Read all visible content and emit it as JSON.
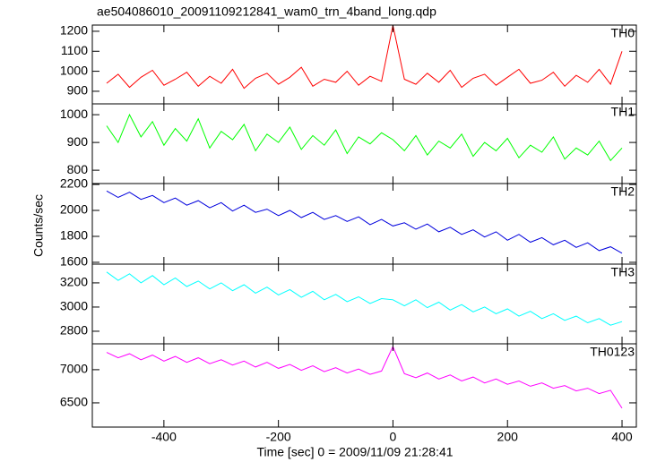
{
  "chart_data": [
    {
      "type": "line",
      "title": "ae504086010_20091109212841_wam0_trn_4band_long.qdp",
      "x": [
        -500,
        -480,
        -460,
        -440,
        -420,
        -400,
        -380,
        -360,
        -340,
        -320,
        -300,
        -280,
        -260,
        -240,
        -220,
        -200,
        -180,
        -160,
        -140,
        -120,
        -100,
        -80,
        -60,
        -40,
        -20,
        0,
        20,
        40,
        60,
        80,
        100,
        120,
        140,
        160,
        180,
        200,
        220,
        240,
        260,
        280,
        300,
        320,
        340,
        360,
        380,
        400
      ],
      "series": [
        {
          "name": "TH0",
          "color": "#ff0000",
          "values": [
            940,
            985,
            920,
            970,
            1005,
            930,
            960,
            995,
            925,
            975,
            940,
            1010,
            915,
            965,
            990,
            935,
            970,
            1020,
            925,
            960,
            945,
            1000,
            930,
            975,
            950,
            1230,
            960,
            935,
            990,
            945,
            1005,
            920,
            965,
            985,
            930,
            970,
            1010,
            940,
            955,
            995,
            925,
            980,
            945,
            1010,
            935,
            1100
          ]
        }
      ],
      "xlim": [
        -525,
        425
      ],
      "ylim": [
        837,
        1231
      ],
      "yticks": [
        900,
        1000,
        1100,
        1200
      ]
    },
    {
      "type": "line",
      "x": [
        -500,
        -480,
        -460,
        -440,
        -420,
        -400,
        -380,
        -360,
        -340,
        -320,
        -300,
        -280,
        -260,
        -240,
        -220,
        -200,
        -180,
        -160,
        -140,
        -120,
        -100,
        -80,
        -60,
        -40,
        -20,
        0,
        20,
        40,
        60,
        80,
        100,
        120,
        140,
        160,
        180,
        200,
        220,
        240,
        260,
        280,
        300,
        320,
        340,
        360,
        380,
        400
      ],
      "series": [
        {
          "name": "TH1",
          "color": "#00ff00",
          "values": [
            960,
            900,
            1000,
            920,
            975,
            890,
            950,
            905,
            985,
            880,
            940,
            910,
            965,
            870,
            930,
            900,
            955,
            875,
            925,
            890,
            945,
            860,
            920,
            895,
            935,
            910,
            870,
            925,
            855,
            905,
            880,
            930,
            850,
            900,
            870,
            915,
            845,
            890,
            865,
            920,
            840,
            880,
            855,
            905,
            835,
            880
          ]
        }
      ],
      "xlim": [
        -525,
        425
      ],
      "ylim": [
        752,
        1039
      ],
      "yticks": [
        800,
        900,
        1000
      ]
    },
    {
      "type": "line",
      "ylabel": "Counts/sec",
      "x": [
        -500,
        -480,
        -460,
        -440,
        -420,
        -400,
        -380,
        -360,
        -340,
        -320,
        -300,
        -280,
        -260,
        -240,
        -220,
        -200,
        -180,
        -160,
        -140,
        -120,
        -100,
        -80,
        -60,
        -40,
        -20,
        0,
        20,
        40,
        60,
        80,
        100,
        120,
        140,
        160,
        180,
        200,
        220,
        240,
        260,
        280,
        300,
        320,
        340,
        360,
        380,
        400
      ],
      "series": [
        {
          "name": "TH2",
          "color": "#0000dd",
          "values": [
            2150,
            2100,
            2140,
            2085,
            2115,
            2060,
            2095,
            2040,
            2075,
            2020,
            2060,
            1995,
            2040,
            1985,
            2010,
            1960,
            2000,
            1945,
            1985,
            1930,
            1960,
            1915,
            1950,
            1890,
            1930,
            1880,
            1905,
            1855,
            1895,
            1835,
            1870,
            1815,
            1850,
            1795,
            1835,
            1770,
            1815,
            1755,
            1790,
            1735,
            1770,
            1715,
            1750,
            1690,
            1720,
            1670
          ]
        }
      ],
      "xlim": [
        -525,
        425
      ],
      "ylim": [
        1586,
        2207
      ],
      "yticks": [
        1600,
        1800,
        2000,
        2200
      ]
    },
    {
      "type": "line",
      "x": [
        -500,
        -480,
        -460,
        -440,
        -420,
        -400,
        -380,
        -360,
        -340,
        -320,
        -300,
        -280,
        -260,
        -240,
        -220,
        -200,
        -180,
        -160,
        -140,
        -120,
        -100,
        -80,
        -60,
        -40,
        -20,
        0,
        20,
        40,
        60,
        80,
        100,
        120,
        140,
        160,
        180,
        200,
        220,
        240,
        260,
        280,
        300,
        320,
        340,
        360,
        380,
        400
      ],
      "series": [
        {
          "name": "TH3",
          "color": "#00ffff",
          "values": [
            3290,
            3220,
            3275,
            3200,
            3260,
            3185,
            3240,
            3170,
            3215,
            3150,
            3200,
            3135,
            3185,
            3115,
            3165,
            3100,
            3145,
            3080,
            3130,
            3060,
            3105,
            3045,
            3085,
            3030,
            3070,
            3060,
            3010,
            3060,
            2995,
            3040,
            2975,
            3020,
            2960,
            3000,
            2945,
            2985,
            2925,
            2965,
            2905,
            2945,
            2890,
            2925,
            2870,
            2905,
            2850,
            2880
          ]
        }
      ],
      "xlim": [
        -525,
        425
      ],
      "ylim": [
        2696,
        3355
      ],
      "yticks": [
        2800,
        3000,
        3200
      ]
    },
    {
      "type": "line",
      "xlabel": "Time [sec] 0 = 2009/11/09 21:28:41",
      "x": [
        -500,
        -480,
        -460,
        -440,
        -420,
        -400,
        -380,
        -360,
        -340,
        -320,
        -300,
        -280,
        -260,
        -240,
        -220,
        -200,
        -180,
        -160,
        -140,
        -120,
        -100,
        -80,
        -60,
        -40,
        -20,
        0,
        20,
        40,
        60,
        80,
        100,
        120,
        140,
        160,
        180,
        200,
        220,
        240,
        260,
        280,
        300,
        320,
        340,
        360,
        380,
        400
      ],
      "series": [
        {
          "name": "TH0123",
          "color": "#ff00ff",
          "values": [
            7260,
            7180,
            7240,
            7150,
            7220,
            7130,
            7200,
            7110,
            7180,
            7090,
            7150,
            7070,
            7130,
            7040,
            7110,
            7020,
            7080,
            6990,
            7060,
            6970,
            7030,
            6950,
            7010,
            6930,
            6980,
            7350,
            6940,
            6880,
            6950,
            6860,
            6920,
            6830,
            6890,
            6800,
            6860,
            6780,
            6830,
            6750,
            6800,
            6720,
            6760,
            6680,
            6720,
            6640,
            6690,
            6420
          ]
        }
      ],
      "xlim": [
        -525,
        425
      ],
      "ylim": [
        6135,
        7390
      ],
      "yticks": [
        6500,
        7000
      ],
      "xticks": [
        -400,
        -200,
        0,
        200,
        400
      ]
    }
  ]
}
